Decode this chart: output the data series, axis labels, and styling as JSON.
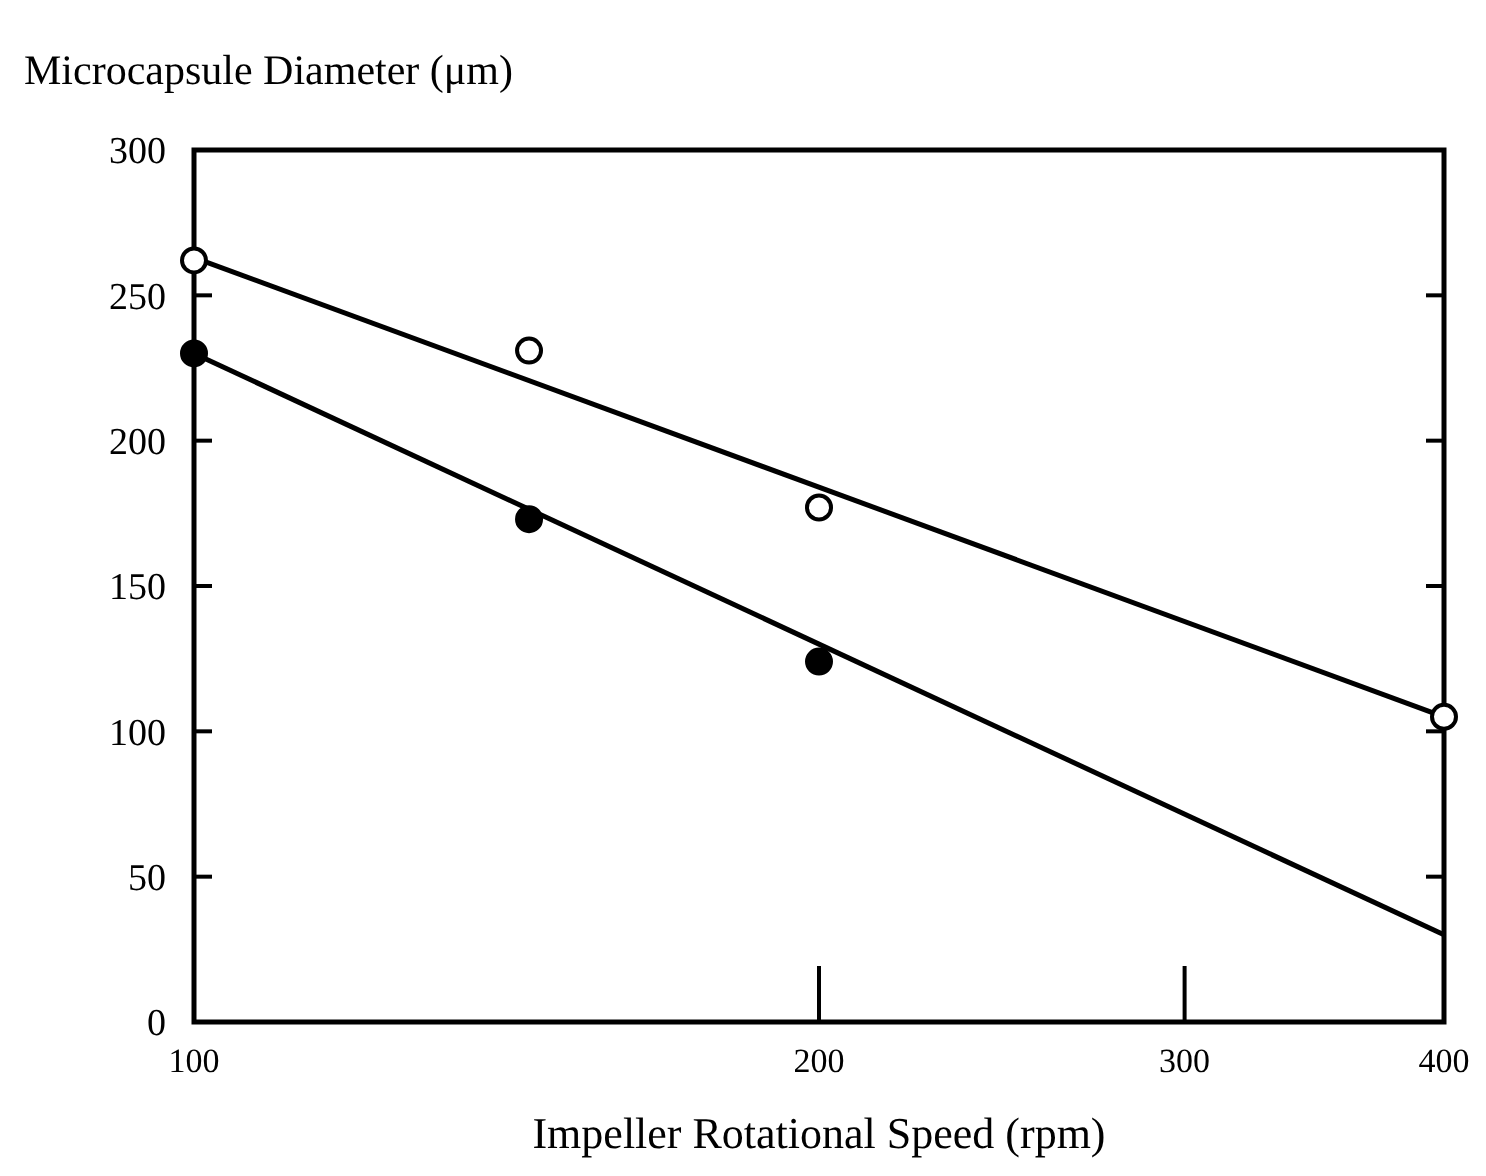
{
  "chart_data": {
    "type": "scatter",
    "xlabel": "Impeller Rotational Speed (rpm)",
    "ylabel": "Microcapsule Diameter (μm)",
    "log": "x",
    "xlim": [
      100,
      400
    ],
    "xticks": [
      100,
      200,
      300,
      400
    ],
    "ylim": [
      0,
      300
    ],
    "yticks": [
      0,
      50,
      100,
      150,
      200,
      250,
      300
    ],
    "grid": false,
    "series": [
      {
        "color": "#ffffff",
        "marker": "circle",
        "x": [
          100,
          145,
          200,
          400
        ],
        "values": [
          262,
          231,
          177,
          105
        ]
      },
      {
        "color": "#000000",
        "marker": "circle",
        "x": [
          100,
          145,
          200
        ],
        "values": [
          230,
          173,
          124
        ]
      },
      {
        "type": "line",
        "color": "#000000",
        "marker": "none",
        "x": [
          100,
          400
        ],
        "values": [
          263,
          105
        ]
      },
      {
        "type": "line",
        "color": "#000000",
        "marker": "none",
        "x": [
          100,
          400
        ],
        "values": [
          230,
          30
        ]
      }
    ]
  }
}
